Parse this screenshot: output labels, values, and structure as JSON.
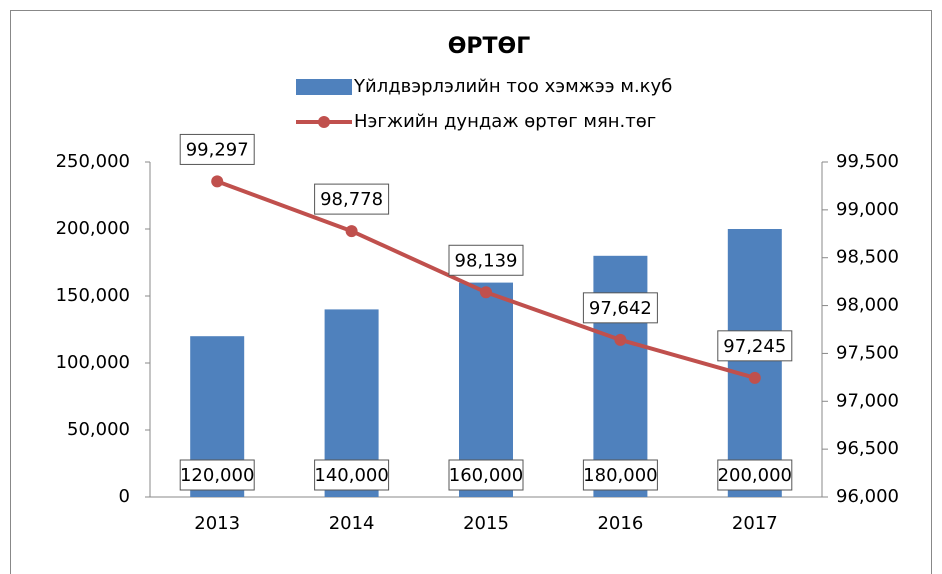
{
  "chart_data": {
    "type": "bar",
    "title": "ӨРТӨГ",
    "categories": [
      "2013",
      "2014",
      "2015",
      "2016",
      "2017"
    ],
    "series": [
      {
        "name": "Үйлдвэрлэлийн тоо хэмжээ м.куб",
        "type": "bar",
        "color": "#4f81bd",
        "values": [
          120000,
          140000,
          160000,
          180000,
          200000
        ],
        "value_labels": [
          "120,000",
          "140,000",
          "160,000",
          "180,000",
          "200,000"
        ]
      },
      {
        "name": "Нэгжийн дундаж өртөг мян.төг",
        "type": "line",
        "axis": "y2",
        "color": "#c0504d",
        "values": [
          99297,
          98778,
          98139,
          97642,
          97245
        ],
        "value_labels": [
          "99,297",
          "98,778",
          "98,139",
          "97,642",
          "97,245"
        ]
      }
    ],
    "ylim": [
      0,
      250000
    ],
    "yticks": [
      0,
      {
        "value": 50000,
        "label": "50,000"
      },
      {
        "value": 100000,
        "label": "100,000"
      },
      {
        "value": 150000,
        "label": "150,000"
      },
      {
        "value": 200000,
        "label": "200,000"
      },
      {
        "value": 250000,
        "label": "250,000"
      }
    ],
    "y2lim": [
      96000,
      99500
    ],
    "y2ticks": [
      {
        "value": 96000,
        "label": "96,000"
      },
      {
        "value": 96500,
        "label": "96,500"
      },
      {
        "value": 97000,
        "label": "97,000"
      },
      {
        "value": 97500,
        "label": "97,500"
      },
      {
        "value": 98000,
        "label": "98,000"
      },
      {
        "value": 98500,
        "label": "98,500"
      },
      {
        "value": 99000,
        "label": "99,000"
      },
      {
        "value": 99500,
        "label": "99,500"
      }
    ]
  }
}
